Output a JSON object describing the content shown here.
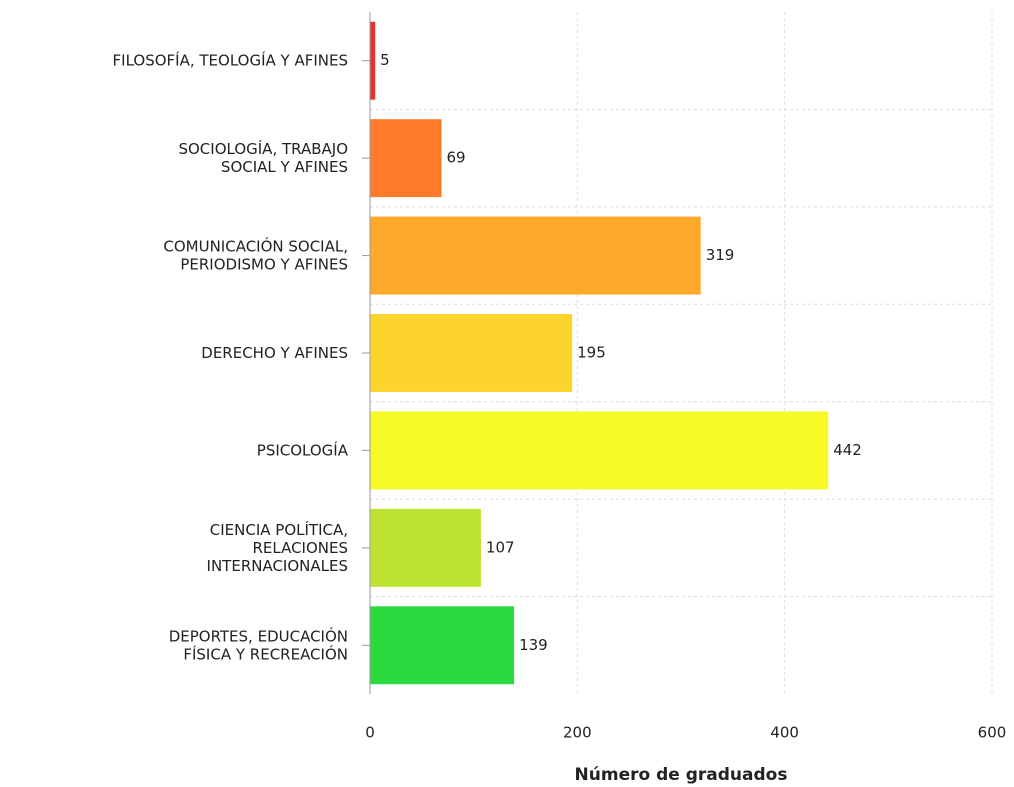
{
  "chart_data": {
    "type": "hbar",
    "categories": [
      "FILOSOFÍA, TEOLOGÍA Y AFINES",
      "SOCIOLOGÍA, TRABAJO\nSOCIAL Y AFINES",
      "COMUNICACIÓN SOCIAL,\nPERIODISMO Y AFINES",
      "DERECHO Y AFINES",
      "PSICOLOGÍA",
      "CIENCIA POLÍTICA,\nRELACIONES\nINTERNACIONALES",
      "DEPORTES, EDUCACIÓN\nFÍSICA Y RECREACIÓN"
    ],
    "values": [
      5,
      69,
      319,
      195,
      442,
      107,
      139
    ],
    "colors": [
      "#e8302e",
      "#ff7b2a",
      "#ffa92a",
      "#fcd42c",
      "#f6fb27",
      "#bde232",
      "#2cd93f"
    ],
    "xlabel": "Número de graduados",
    "xlim": [
      0,
      600
    ],
    "xticks": [
      0,
      200,
      400,
      600
    ],
    "grid": true
  }
}
